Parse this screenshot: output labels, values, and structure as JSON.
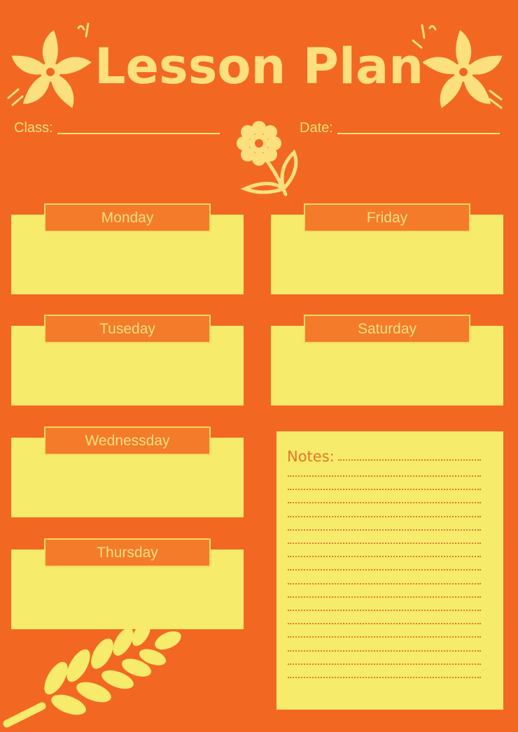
{
  "header": {
    "title": "Lesson Plan",
    "class_label": "Class:",
    "date_label": "Date:"
  },
  "days": {
    "monday": "Monday",
    "tuesday": "Tuseday",
    "wednesday": "Wednessday",
    "thursday": "Thursday",
    "friday": "Friday",
    "saturday": "Saturday"
  },
  "notes": {
    "label": "Notes:"
  },
  "colors": {
    "background": "#F26822",
    "panel": "#F6EB6A",
    "tab": "#F47B2A",
    "accent": "#FDE07E"
  },
  "icons": [
    "flower-icon",
    "daisy-icon",
    "wheat-icon"
  ]
}
